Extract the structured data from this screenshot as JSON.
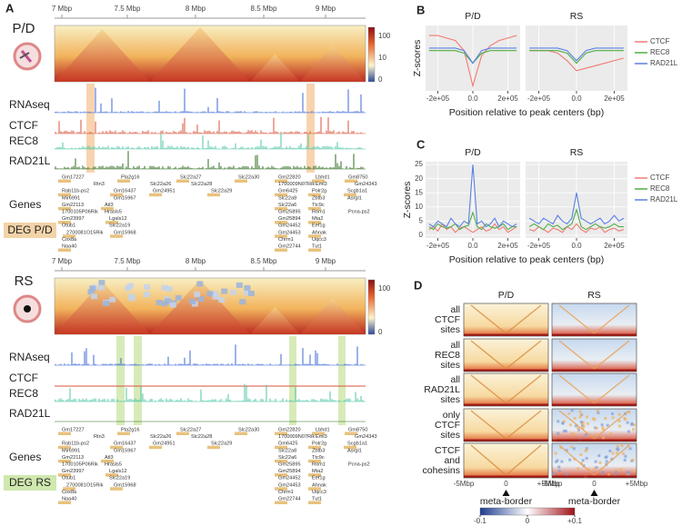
{
  "panel_a": {
    "label": "A",
    "axis_ticks": [
      "7 Mbp",
      "7.5 Mbp",
      "8 Mbp",
      "8.5 Mbp",
      "9 Mbp"
    ],
    "tracks": [
      "RNAseq",
      "CTCF",
      "REC8",
      "RAD21L"
    ],
    "genes_label": "Genes",
    "genes": [
      "Gm17227",
      "Pla2g16",
      "Slc22a27",
      "Slc22a30",
      "Gm22820",
      "Lbhd1",
      "Gm8750",
      "Rtn3",
      "Slc22a26",
      "Slc22a28",
      "1700009N07Rik",
      "Eml3",
      "Gm24343",
      "Rab11b-ps2",
      "Gm16437",
      "Gm24951",
      "Slc22a29",
      "Gm6425",
      "Polr2g",
      "Scgb1a1",
      "Mir6991",
      "Gm15967",
      "Slc22a8",
      "Zbtb3",
      "Asrgl1",
      "Gm22113",
      "Atl3",
      "Slc22a6",
      "Ttc9c",
      "1700105P06Rik",
      "Hrasls5",
      "Gm25895",
      "Rom1",
      "Pcna-ps2",
      "Gm23997",
      "Lgals12",
      "Gm25894",
      "Mta2",
      "Otub1",
      "Slc22a19",
      "Gm24452",
      "Eef1g",
      "2700081O15Rik",
      "Gm15968",
      "Gm24453",
      "Ahnak",
      "Cox8a",
      "Chrm1",
      "Uqcc3",
      "Naa40",
      "Gm22744",
      "Tut1"
    ],
    "top": {
      "sample": "P/D",
      "deg": "DEG P/D",
      "colorbar_ticks": [
        "100",
        "10",
        "0"
      ]
    },
    "bottom": {
      "sample": "RS",
      "deg": "DEG RS",
      "colorbar_ticks": [
        "100",
        "0"
      ]
    }
  },
  "chart_data": [
    {
      "label": "B",
      "type": "line",
      "ylabel": "Z-scores",
      "xlabel": "Position relative to peak centers (bp)",
      "xlim": [
        -270000,
        270000
      ],
      "xticks": [
        {
          "value": -200000,
          "label": "-2e+05"
        },
        {
          "value": 0,
          "label": "0.0"
        },
        {
          "value": 200000,
          "label": "2e+05"
        }
      ],
      "ylim": [
        -5,
        8
      ],
      "x": [
        -250000,
        -200000,
        -150000,
        -100000,
        -50000,
        0,
        50000,
        100000,
        150000,
        200000,
        250000
      ],
      "facets": [
        {
          "title": "P/D",
          "series": [
            {
              "name": "CTCF",
              "color": "#f07b72",
              "values": [
                6,
                6,
                5.5,
                5,
                3,
                -4,
                2,
                4,
                5,
                5.5,
                6
              ]
            },
            {
              "name": "REC8",
              "color": "#4fae45",
              "values": [
                3,
                3,
                3,
                3,
                2.5,
                0.5,
                2.5,
                3,
                3,
                3,
                3
              ]
            },
            {
              "name": "RAD21L",
              "color": "#5b7fe3",
              "values": [
                3.5,
                3.5,
                3.5,
                3.5,
                3,
                0.5,
                3,
                3.5,
                3.5,
                3.5,
                3.5
              ]
            }
          ]
        },
        {
          "title": "RS",
          "series": [
            {
              "name": "CTCF",
              "color": "#f07b72",
              "values": [
                3,
                3,
                3,
                2.5,
                1,
                -1,
                -0.5,
                0,
                0.5,
                1,
                1.5
              ]
            },
            {
              "name": "REC8",
              "color": "#4fae45",
              "values": [
                3,
                3,
                3,
                3,
                2.5,
                0.5,
                2.5,
                3,
                3,
                3,
                3
              ]
            },
            {
              "name": "RAD21L",
              "color": "#5b7fe3",
              "values": [
                3.5,
                3.5,
                3.5,
                3.5,
                3,
                1,
                3,
                3.5,
                3.5,
                3.5,
                3.5
              ]
            }
          ]
        }
      ]
    },
    {
      "label": "C",
      "type": "line",
      "ylabel": "Z-scores",
      "xlabel": "Position relative to peak centers (bp)",
      "xlim": [
        -270000,
        270000
      ],
      "xticks": [
        {
          "value": -200000,
          "label": "-2e+05"
        },
        {
          "value": 0,
          "label": "0.0"
        },
        {
          "value": 200000,
          "label": "2e+05"
        }
      ],
      "ylim": [
        -1,
        26
      ],
      "yticks": [
        0,
        5,
        10,
        15,
        20,
        25
      ],
      "x": [
        -250000,
        -225000,
        -200000,
        -175000,
        -150000,
        -125000,
        -100000,
        -75000,
        -50000,
        -25000,
        0,
        25000,
        50000,
        75000,
        100000,
        125000,
        150000,
        175000,
        200000,
        225000,
        250000
      ],
      "facets": [
        {
          "title": "P/D",
          "series": [
            {
              "name": "CTCF",
              "color": "#f07b72",
              "values": [
                2,
                3,
                1.5,
                4,
                2,
                3,
                1,
                2.5,
                3,
                2,
                1,
                2,
                3,
                1.5,
                2,
                4,
                2,
                3,
                1,
                2,
                3
              ]
            },
            {
              "name": "REC8",
              "color": "#4fae45",
              "values": [
                3,
                2,
                4,
                3,
                2.5,
                3,
                4,
                2,
                3,
                3.5,
                8,
                3,
                2,
                4,
                3,
                2.5,
                3,
                4,
                2,
                3,
                3
              ]
            },
            {
              "name": "RAD21L",
              "color": "#5b7fe3",
              "values": [
                4,
                3,
                5,
                4,
                3,
                6,
                4,
                3,
                5,
                4,
                25,
                4,
                5,
                3,
                4,
                6,
                3,
                5,
                4,
                3,
                4
              ]
            }
          ]
        },
        {
          "title": "RS",
          "series": [
            {
              "name": "CTCF",
              "color": "#f07b72",
              "values": [
                2,
                1.5,
                3,
                2,
                1,
                2.5,
                2,
                1,
                3,
                2,
                4,
                2,
                1,
                2.5,
                2,
                3,
                1,
                2,
                2.5,
                1.5,
                2
              ]
            },
            {
              "name": "REC8",
              "color": "#4fae45",
              "values": [
                3,
                4,
                3,
                2,
                4,
                3,
                3.5,
                2,
                3,
                4,
                9,
                3,
                2,
                3,
                4,
                3,
                2.5,
                3,
                4,
                3,
                3
              ]
            },
            {
              "name": "RAD21L",
              "color": "#5b7fe3",
              "values": [
                6,
                5,
                4,
                6,
                5,
                4,
                7,
                5,
                4,
                6,
                15,
                6,
                5,
                4,
                5,
                6,
                4,
                5,
                7,
                5,
                6
              ]
            }
          ]
        }
      ]
    }
  ],
  "panel_d": {
    "label": "D",
    "columns": [
      "P/D",
      "RS"
    ],
    "rows": [
      [
        "all",
        "CTCF",
        "sites"
      ],
      [
        "all",
        "REC8",
        "sites"
      ],
      [
        "all",
        "RAD21L",
        "sites"
      ],
      [
        "only",
        "CTCF",
        "sites"
      ],
      [
        "CTCF",
        "and",
        "cohesins"
      ]
    ],
    "xlabels": [
      "-5Mbp",
      "0",
      "+5Mbp"
    ],
    "marker_label": "meta-border",
    "clim": [
      -0.1,
      0.1
    ],
    "colorbar_ticks": [
      -0.1,
      0,
      {
        "value": 0.1,
        "label": "+0.1"
      }
    ]
  }
}
